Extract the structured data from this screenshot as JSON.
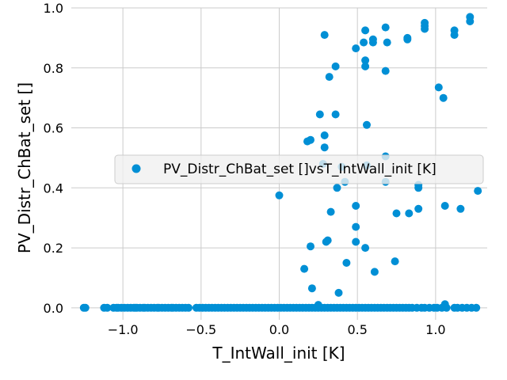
{
  "chart_data": {
    "type": "scatter",
    "xlabel": "T_IntWall_init [K]",
    "ylabel": "PV_Distr_ChBat_set []",
    "xlim": [
      -1.33,
      1.33
    ],
    "ylim": [
      -0.04,
      1.0
    ],
    "xticks": [
      -1.0,
      -0.5,
      0.0,
      0.5,
      1.0
    ],
    "xtick_labels": [
      "−1.0",
      "−0.5",
      "0.0",
      "0.5",
      "1.0"
    ],
    "yticks": [
      0.0,
      0.2,
      0.4,
      0.6,
      0.8,
      1.0
    ],
    "ytick_labels": [
      "0.0",
      "0.2",
      "0.4",
      "0.6",
      "0.8",
      "1.0"
    ],
    "grid": true,
    "legend_position": "center-right",
    "series": [
      {
        "name": "PV_Distr_ChBat_set []vsT_IntWall_init [K]",
        "color": "#008fd5",
        "points": [
          [
            0.29,
            0.91
          ],
          [
            0.49,
            0.865
          ],
          [
            0.55,
            0.925
          ],
          [
            0.54,
            0.885
          ],
          [
            0.6,
            0.895
          ],
          [
            0.6,
            0.885
          ],
          [
            0.68,
            0.935
          ],
          [
            0.69,
            0.885
          ],
          [
            0.82,
            0.9
          ],
          [
            0.82,
            0.895
          ],
          [
            0.93,
            0.95
          ],
          [
            0.93,
            0.94
          ],
          [
            0.93,
            0.93
          ],
          [
            1.12,
            0.925
          ],
          [
            1.12,
            0.91
          ],
          [
            1.22,
            0.97
          ],
          [
            1.22,
            0.955
          ],
          [
            0.55,
            0.825
          ],
          [
            0.55,
            0.805
          ],
          [
            0.36,
            0.805
          ],
          [
            0.32,
            0.77
          ],
          [
            0.68,
            0.79
          ],
          [
            1.02,
            0.735
          ],
          [
            1.05,
            0.7
          ],
          [
            0.26,
            0.645
          ],
          [
            0.36,
            0.645
          ],
          [
            0.56,
            0.61
          ],
          [
            0.29,
            0.575
          ],
          [
            0.18,
            0.555
          ],
          [
            0.2,
            0.56
          ],
          [
            0.29,
            0.535
          ],
          [
            0.28,
            0.48
          ],
          [
            0.4,
            0.47
          ],
          [
            0.56,
            0.475
          ],
          [
            0.68,
            0.505
          ],
          [
            0.42,
            0.42
          ],
          [
            0.37,
            0.4
          ],
          [
            0.68,
            0.42
          ],
          [
            0.89,
            0.41
          ],
          [
            0.89,
            0.4
          ],
          [
            0.0,
            0.375
          ],
          [
            1.27,
            0.39
          ],
          [
            0.33,
            0.32
          ],
          [
            0.49,
            0.34
          ],
          [
            0.75,
            0.315
          ],
          [
            0.83,
            0.315
          ],
          [
            0.89,
            0.33
          ],
          [
            1.06,
            0.34
          ],
          [
            1.16,
            0.33
          ],
          [
            0.49,
            0.27
          ],
          [
            0.3,
            0.22
          ],
          [
            0.31,
            0.225
          ],
          [
            0.49,
            0.22
          ],
          [
            0.2,
            0.205
          ],
          [
            0.55,
            0.2
          ],
          [
            0.43,
            0.15
          ],
          [
            0.74,
            0.155
          ],
          [
            0.16,
            0.13
          ],
          [
            0.61,
            0.12
          ],
          [
            0.21,
            0.065
          ],
          [
            0.38,
            0.05
          ],
          [
            0.25,
            0.01
          ],
          [
            1.06,
            0.012
          ],
          [
            -1.25,
            0
          ],
          [
            -1.24,
            0
          ],
          [
            -1.12,
            0
          ],
          [
            -1.1,
            0
          ],
          [
            -1.06,
            0
          ],
          [
            -1.04,
            0
          ],
          [
            -1.03,
            0
          ],
          [
            -1.01,
            0
          ],
          [
            -0.99,
            0
          ],
          [
            -0.97,
            0
          ],
          [
            -0.95,
            0
          ],
          [
            -0.93,
            0
          ],
          [
            -0.92,
            0
          ],
          [
            -0.91,
            0
          ],
          [
            -0.89,
            0
          ],
          [
            -0.87,
            0
          ],
          [
            -0.86,
            0
          ],
          [
            -0.84,
            0
          ],
          [
            -0.82,
            0
          ],
          [
            -0.8,
            0
          ],
          [
            -0.78,
            0
          ],
          [
            -0.77,
            0
          ],
          [
            -0.75,
            0
          ],
          [
            -0.73,
            0
          ],
          [
            -0.71,
            0
          ],
          [
            -0.69,
            0
          ],
          [
            -0.68,
            0
          ],
          [
            -0.66,
            0
          ],
          [
            -0.64,
            0
          ],
          [
            -0.62,
            0
          ],
          [
            -0.6,
            0
          ],
          [
            -0.58,
            0
          ],
          [
            -0.53,
            0
          ],
          [
            -0.51,
            0
          ],
          [
            -0.49,
            0
          ],
          [
            -0.47,
            0
          ],
          [
            -0.45,
            0
          ],
          [
            -0.43,
            0
          ],
          [
            -0.41,
            0
          ],
          [
            -0.39,
            0
          ],
          [
            -0.37,
            0
          ],
          [
            -0.35,
            0
          ],
          [
            -0.33,
            0
          ],
          [
            -0.31,
            0
          ],
          [
            -0.29,
            0
          ],
          [
            -0.27,
            0
          ],
          [
            -0.25,
            0
          ],
          [
            -0.23,
            0
          ],
          [
            -0.21,
            0
          ],
          [
            -0.19,
            0
          ],
          [
            -0.17,
            0
          ],
          [
            -0.15,
            0
          ],
          [
            -0.13,
            0
          ],
          [
            -0.11,
            0
          ],
          [
            -0.09,
            0
          ],
          [
            -0.07,
            0
          ],
          [
            -0.05,
            0
          ],
          [
            -0.03,
            0
          ],
          [
            -0.01,
            0
          ],
          [
            0.01,
            0
          ],
          [
            0.03,
            0
          ],
          [
            0.05,
            0
          ],
          [
            0.07,
            0
          ],
          [
            0.09,
            0
          ],
          [
            0.11,
            0
          ],
          [
            0.13,
            0
          ],
          [
            0.15,
            0
          ],
          [
            0.17,
            0
          ],
          [
            0.19,
            0
          ],
          [
            0.21,
            0
          ],
          [
            0.23,
            0
          ],
          [
            0.25,
            0
          ],
          [
            0.27,
            0
          ],
          [
            0.29,
            0
          ],
          [
            0.31,
            0
          ],
          [
            0.33,
            0
          ],
          [
            0.35,
            0
          ],
          [
            0.37,
            0
          ],
          [
            0.39,
            0
          ],
          [
            0.41,
            0
          ],
          [
            0.43,
            0
          ],
          [
            0.45,
            0
          ],
          [
            0.47,
            0
          ],
          [
            0.49,
            0
          ],
          [
            0.51,
            0
          ],
          [
            0.53,
            0
          ],
          [
            0.55,
            0
          ],
          [
            0.57,
            0
          ],
          [
            0.59,
            0
          ],
          [
            0.61,
            0
          ],
          [
            0.63,
            0
          ],
          [
            0.65,
            0
          ],
          [
            0.67,
            0
          ],
          [
            0.69,
            0
          ],
          [
            0.71,
            0
          ],
          [
            0.73,
            0
          ],
          [
            0.75,
            0
          ],
          [
            0.77,
            0
          ],
          [
            0.79,
            0
          ],
          [
            0.81,
            0
          ],
          [
            0.83,
            0
          ],
          [
            0.85,
            0
          ],
          [
            0.88,
            0
          ],
          [
            0.91,
            0
          ],
          [
            0.93,
            0
          ],
          [
            0.96,
            0
          ],
          [
            0.99,
            0
          ],
          [
            1.01,
            0
          ],
          [
            1.04,
            0
          ],
          [
            1.07,
            0
          ],
          [
            1.12,
            0
          ],
          [
            1.14,
            0
          ],
          [
            1.17,
            0
          ],
          [
            1.2,
            0
          ],
          [
            1.23,
            0
          ],
          [
            1.26,
            0
          ]
        ]
      }
    ]
  }
}
